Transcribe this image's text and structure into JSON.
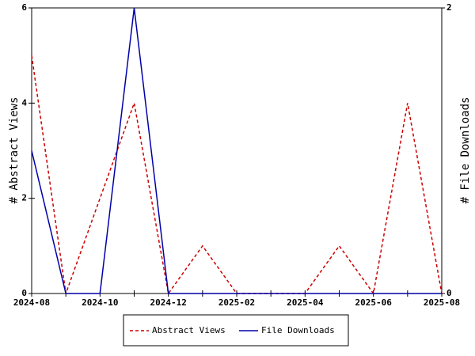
{
  "chart_data": {
    "type": "line",
    "categories": [
      "2024-08",
      null,
      "2024-10",
      null,
      "2024-12",
      null,
      "2025-02",
      null,
      "2025-04",
      null,
      "2025-06",
      null,
      "2025-08"
    ],
    "series": [
      {
        "name": "Abstract Views",
        "color": "#cc0000",
        "dash": true,
        "values": [
          5,
          0,
          2,
          4,
          0,
          1,
          0,
          0,
          0,
          1,
          0,
          4,
          0
        ]
      },
      {
        "name": "File Downloads",
        "color": "#0000aa",
        "axis": "y2",
        "values": [
          1,
          0,
          0,
          2,
          0,
          0,
          0,
          0,
          0,
          0,
          0,
          0,
          0
        ]
      }
    ],
    "ylabel": "# Abstract Views",
    "y2label": "# File Downloads",
    "ylim": [
      0,
      6
    ],
    "yticks": [
      0,
      2,
      4,
      6
    ],
    "y2lim": [
      0,
      2
    ],
    "y2ticks": [
      0,
      2
    ],
    "legend": "bottom"
  }
}
